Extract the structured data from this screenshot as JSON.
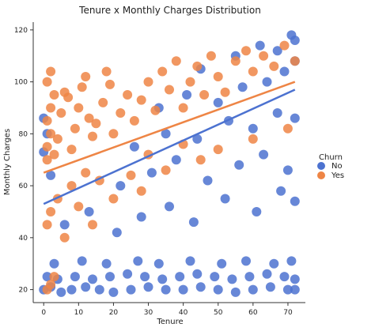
{
  "chart_data": {
    "type": "scatter",
    "title": "Tenure x Monthly Charges Distribution",
    "xlabel": "Tenure",
    "ylabel": "Monthly Charges",
    "xlim": [
      -3,
      75
    ],
    "ylim": [
      15,
      123
    ],
    "x_ticks": [
      0,
      10,
      20,
      30,
      40,
      50,
      60,
      70
    ],
    "y_ticks": [
      20,
      40,
      60,
      80,
      100,
      120
    ],
    "grid": false,
    "legend": {
      "title": "Churn",
      "placement": "right",
      "entries": [
        "No",
        "Yes"
      ]
    },
    "colors": {
      "No": "#4c72d0",
      "Yes": "#ee8545"
    },
    "series": [
      {
        "name": "No",
        "color": "#4c72d0",
        "regression_line": {
          "x": [
            0,
            72
          ],
          "y": [
            53,
            97
          ]
        },
        "points": [
          [
            0,
            20
          ],
          [
            2,
            21
          ],
          [
            5,
            19
          ],
          [
            8,
            20
          ],
          [
            12,
            21
          ],
          [
            16,
            20
          ],
          [
            20,
            19
          ],
          [
            25,
            20
          ],
          [
            30,
            21
          ],
          [
            35,
            20
          ],
          [
            40,
            20
          ],
          [
            45,
            21
          ],
          [
            50,
            20
          ],
          [
            55,
            19
          ],
          [
            60,
            20
          ],
          [
            65,
            21
          ],
          [
            70,
            20
          ],
          [
            72,
            20
          ],
          [
            1,
            25
          ],
          [
            4,
            24
          ],
          [
            9,
            25
          ],
          [
            14,
            24
          ],
          [
            19,
            25
          ],
          [
            24,
            26
          ],
          [
            29,
            25
          ],
          [
            34,
            24
          ],
          [
            39,
            25
          ],
          [
            44,
            26
          ],
          [
            49,
            25
          ],
          [
            54,
            24
          ],
          [
            59,
            25
          ],
          [
            64,
            26
          ],
          [
            69,
            25
          ],
          [
            72,
            24
          ],
          [
            3,
            30
          ],
          [
            11,
            31
          ],
          [
            18,
            30
          ],
          [
            27,
            31
          ],
          [
            33,
            30
          ],
          [
            42,
            31
          ],
          [
            51,
            30
          ],
          [
            58,
            31
          ],
          [
            66,
            30
          ],
          [
            71,
            31
          ],
          [
            6,
            45
          ],
          [
            13,
            50
          ],
          [
            21,
            42
          ],
          [
            28,
            48
          ],
          [
            36,
            52
          ],
          [
            43,
            46
          ],
          [
            52,
            55
          ],
          [
            61,
            50
          ],
          [
            68,
            58
          ],
          [
            72,
            54
          ],
          [
            22,
            60
          ],
          [
            31,
            65
          ],
          [
            38,
            70
          ],
          [
            47,
            62
          ],
          [
            56,
            68
          ],
          [
            63,
            72
          ],
          [
            70,
            66
          ],
          [
            26,
            75
          ],
          [
            35,
            80
          ],
          [
            44,
            78
          ],
          [
            53,
            85
          ],
          [
            60,
            82
          ],
          [
            67,
            88
          ],
          [
            72,
            86
          ],
          [
            33,
            90
          ],
          [
            41,
            95
          ],
          [
            50,
            92
          ],
          [
            57,
            98
          ],
          [
            64,
            100
          ],
          [
            69,
            104
          ],
          [
            72,
            108
          ],
          [
            45,
            105
          ],
          [
            55,
            110
          ],
          [
            62,
            114
          ],
          [
            67,
            112
          ],
          [
            71,
            118
          ],
          [
            72,
            116
          ],
          [
            0,
            73
          ],
          [
            1,
            80
          ],
          [
            0,
            86
          ],
          [
            2,
            64
          ]
        ]
      },
      {
        "name": "Yes",
        "color": "#ee8545",
        "regression_line": {
          "x": [
            0,
            72
          ],
          "y": [
            65,
            100
          ]
        },
        "points": [
          [
            1,
            70
          ],
          [
            1,
            75
          ],
          [
            2,
            80
          ],
          [
            1,
            85
          ],
          [
            2,
            90
          ],
          [
            3,
            95
          ],
          [
            1,
            100
          ],
          [
            2,
            104
          ],
          [
            4,
            78
          ],
          [
            5,
            88
          ],
          [
            6,
            96
          ],
          [
            3,
            72
          ],
          [
            8,
            74
          ],
          [
            9,
            82
          ],
          [
            10,
            90
          ],
          [
            11,
            98
          ],
          [
            12,
            102
          ],
          [
            13,
            86
          ],
          [
            7,
            94
          ],
          [
            14,
            79
          ],
          [
            15,
            84
          ],
          [
            17,
            92
          ],
          [
            19,
            99
          ],
          [
            20,
            80
          ],
          [
            22,
            88
          ],
          [
            24,
            95
          ],
          [
            18,
            104
          ],
          [
            26,
            85
          ],
          [
            28,
            93
          ],
          [
            30,
            100
          ],
          [
            32,
            89
          ],
          [
            34,
            104
          ],
          [
            36,
            97
          ],
          [
            38,
            108
          ],
          [
            40,
            90
          ],
          [
            42,
            100
          ],
          [
            44,
            106
          ],
          [
            46,
            95
          ],
          [
            48,
            110
          ],
          [
            50,
            102
          ],
          [
            52,
            96
          ],
          [
            55,
            108
          ],
          [
            58,
            112
          ],
          [
            60,
            104
          ],
          [
            63,
            110
          ],
          [
            66,
            106
          ],
          [
            69,
            114
          ],
          [
            72,
            108
          ],
          [
            1,
            20
          ],
          [
            2,
            22
          ],
          [
            3,
            25
          ],
          [
            1,
            45
          ],
          [
            2,
            50
          ],
          [
            4,
            55
          ],
          [
            6,
            40
          ],
          [
            8,
            60
          ],
          [
            10,
            52
          ],
          [
            12,
            65
          ],
          [
            14,
            45
          ],
          [
            16,
            62
          ],
          [
            20,
            55
          ],
          [
            25,
            64
          ],
          [
            28,
            58
          ],
          [
            30,
            72
          ],
          [
            35,
            66
          ],
          [
            40,
            76
          ],
          [
            45,
            70
          ],
          [
            50,
            74
          ],
          [
            60,
            78
          ],
          [
            70,
            82
          ]
        ]
      }
    ]
  }
}
